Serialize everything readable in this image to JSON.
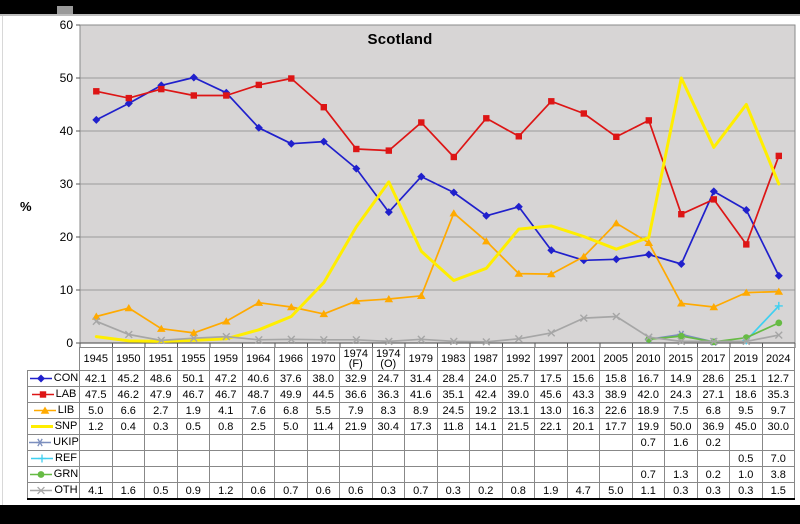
{
  "chart_data": {
    "type": "line",
    "title": "Scotland",
    "ylabel": "%",
    "ylim": [
      0,
      60
    ],
    "yticks": [
      0,
      10,
      20,
      30,
      40,
      50,
      60
    ],
    "grid": true,
    "plot_bg": "#d7d5d5",
    "grid_color": "#9b9b9b",
    "border_color": "#8a8a8a",
    "axis_color": "#666666",
    "categories": [
      "1945",
      "1950",
      "1951",
      "1955",
      "1959",
      "1964",
      "1966",
      "1970",
      "1974 (F)",
      "1974 (O)",
      "1979",
      "1983",
      "1987",
      "1992",
      "1997",
      "2001",
      "2005",
      "2010",
      "2015",
      "2017",
      "2019",
      "2024"
    ],
    "legend_position": "table-left",
    "series": [
      {
        "name": "CON",
        "color": "#2020cc",
        "marker": "diamond",
        "values": [
          42.1,
          45.2,
          48.6,
          50.1,
          47.2,
          40.6,
          37.6,
          38.0,
          32.9,
          24.7,
          31.4,
          28.4,
          24.0,
          25.7,
          17.5,
          15.6,
          15.8,
          16.7,
          14.9,
          28.6,
          25.1,
          12.7
        ]
      },
      {
        "name": "LAB",
        "color": "#dd1515",
        "marker": "square",
        "values": [
          47.5,
          46.2,
          47.9,
          46.7,
          46.7,
          48.7,
          49.9,
          44.5,
          36.6,
          36.3,
          41.6,
          35.1,
          42.4,
          39.0,
          45.6,
          43.3,
          38.9,
          42.0,
          24.3,
          27.1,
          18.6,
          35.3
        ]
      },
      {
        "name": "LIB",
        "color": "#ffaa00",
        "marker": "triangle",
        "values": [
          5.0,
          6.6,
          2.7,
          1.9,
          4.1,
          7.6,
          6.8,
          5.5,
          7.9,
          8.3,
          8.9,
          24.5,
          19.2,
          13.1,
          13.0,
          16.3,
          22.6,
          18.9,
          7.5,
          6.8,
          9.5,
          9.7
        ]
      },
      {
        "name": "SNP",
        "color": "#ffee00",
        "marker": "none",
        "thick": true,
        "values": [
          1.2,
          0.4,
          0.3,
          0.5,
          0.8,
          2.5,
          5.0,
          11.4,
          21.9,
          30.4,
          17.3,
          11.8,
          14.1,
          21.5,
          22.1,
          20.1,
          17.7,
          19.9,
          50.0,
          36.9,
          45.0,
          30.0
        ]
      },
      {
        "name": "UKIP",
        "color": "#7c8fbe",
        "marker": "asterisk",
        "values": [
          null,
          null,
          null,
          null,
          null,
          null,
          null,
          null,
          null,
          null,
          null,
          null,
          null,
          null,
          null,
          null,
          null,
          0.7,
          1.6,
          0.2,
          null,
          null
        ]
      },
      {
        "name": "REF",
        "color": "#3fd0f0",
        "marker": "plus",
        "values": [
          null,
          null,
          null,
          null,
          null,
          null,
          null,
          null,
          null,
          null,
          null,
          null,
          null,
          null,
          null,
          null,
          null,
          null,
          null,
          null,
          0.5,
          7.0
        ]
      },
      {
        "name": "GRN",
        "color": "#66bb44",
        "marker": "circle",
        "values": [
          null,
          null,
          null,
          null,
          null,
          null,
          null,
          null,
          null,
          null,
          null,
          null,
          null,
          null,
          null,
          null,
          null,
          0.7,
          1.3,
          0.2,
          1.0,
          3.8
        ]
      },
      {
        "name": "OTH",
        "color": "#a6a6a6",
        "marker": "x",
        "values": [
          4.1,
          1.6,
          0.5,
          0.9,
          1.2,
          0.6,
          0.7,
          0.6,
          0.6,
          0.3,
          0.7,
          0.3,
          0.2,
          0.8,
          1.9,
          4.7,
          5.0,
          1.1,
          0.3,
          0.3,
          0.3,
          1.5
        ]
      }
    ]
  }
}
